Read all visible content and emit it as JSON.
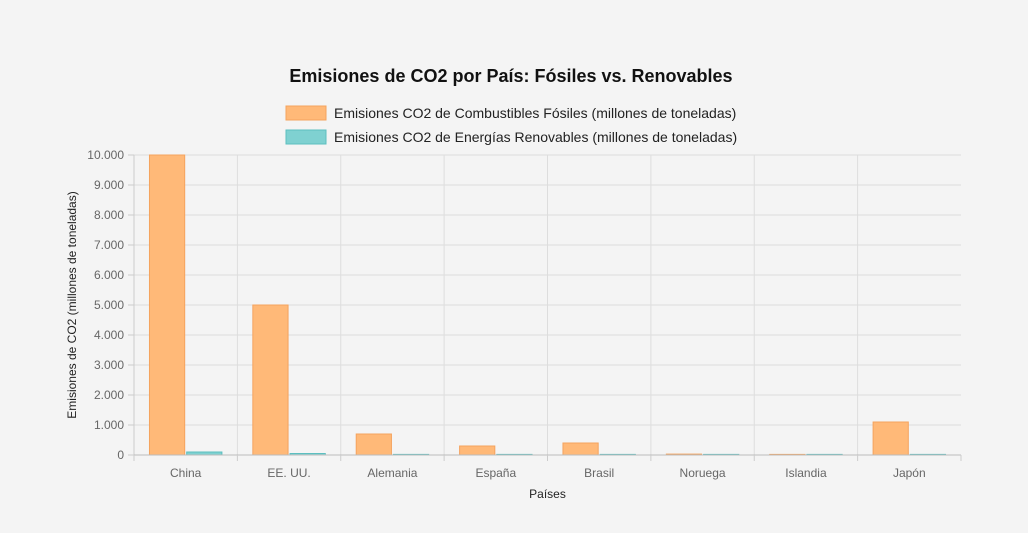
{
  "chart_data": {
    "type": "bar",
    "title": "Emisiones de CO2 por País: Fósiles vs. Renovables",
    "xlabel": "Países",
    "ylabel": "Emisiones de CO2 (millones de toneladas)",
    "categories": [
      "China",
      "EE. UU.",
      "Alemania",
      "España",
      "Brasil",
      "Noruega",
      "Islandia",
      "Japón"
    ],
    "series": [
      {
        "name": "Emisiones CO2 de Combustibles Fósiles (millones de toneladas)",
        "values": [
          10000,
          5000,
          700,
          300,
          400,
          30,
          5,
          1100
        ],
        "color": "#ffb978",
        "border": "#f5a35e"
      },
      {
        "name": "Emisiones CO2 de Energías Renovables (millones de toneladas)",
        "values": [
          100,
          50,
          20,
          10,
          20,
          15,
          15,
          8
        ],
        "color": "#7fd1d1",
        "border": "#5cbfc0"
      }
    ],
    "ylim": [
      0,
      10000
    ],
    "yticks": [
      0,
      1000,
      2000,
      3000,
      4000,
      5000,
      6000,
      7000,
      8000,
      9000,
      10000
    ],
    "ytick_labels": [
      "0",
      "1.000",
      "2.000",
      "3.000",
      "4.000",
      "5.000",
      "6.000",
      "7.000",
      "8.000",
      "9.000",
      "10.000"
    ],
    "grid": true,
    "legend_position": "top"
  }
}
